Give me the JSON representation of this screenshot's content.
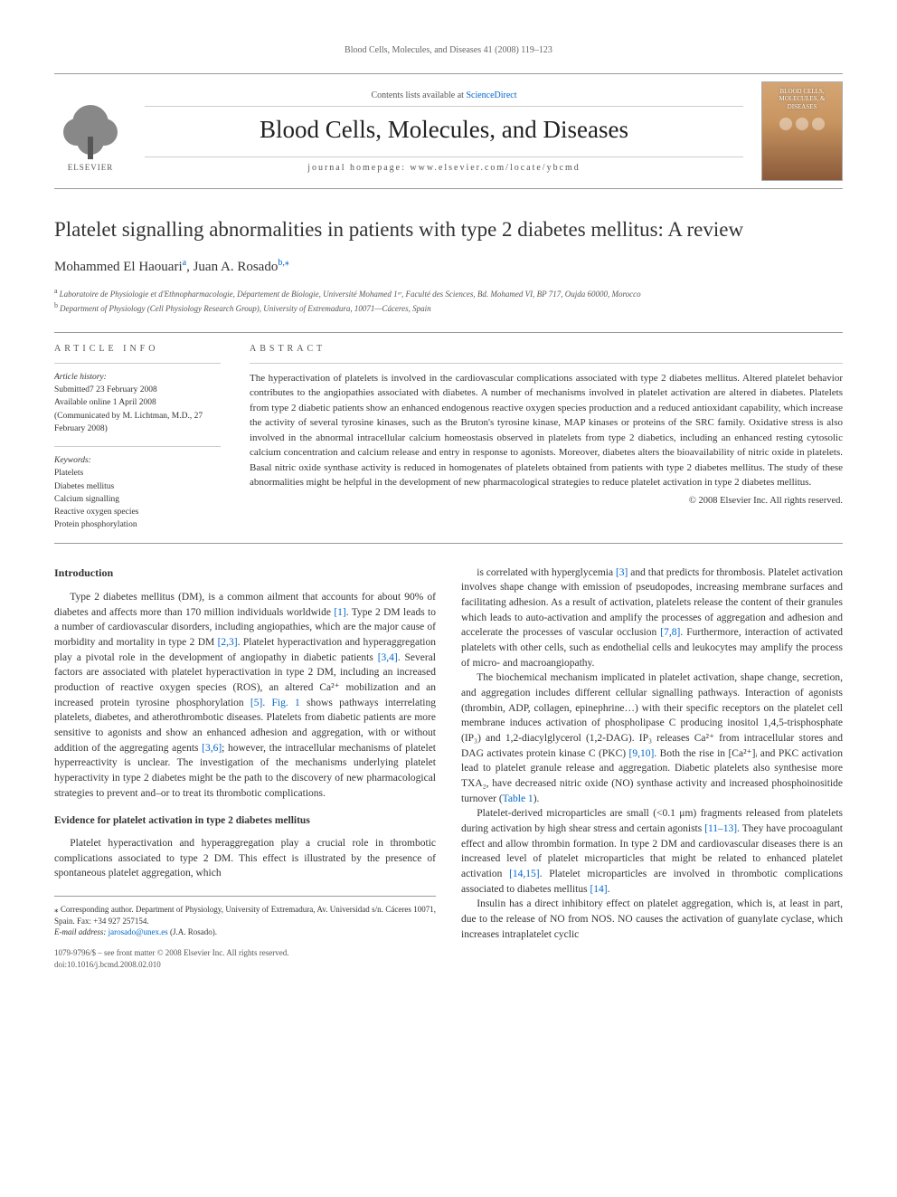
{
  "runningHeader": "Blood Cells, Molecules, and Diseases 41 (2008) 119–123",
  "masthead": {
    "publisher": "ELSEVIER",
    "contentsPrefix": "Contents lists available at ",
    "contentsLink": "ScienceDirect",
    "journalName": "Blood Cells, Molecules, and Diseases",
    "homepageLabel": "journal homepage: www.elsevier.com/locate/ybcmd",
    "coverTitle": "BLOOD CELLS, MOLECULES, & DISEASES"
  },
  "article": {
    "title": "Platelet signalling abnormalities in patients with type 2 diabetes mellitus: A review",
    "authors": [
      {
        "name": "Mohammed El Haouari",
        "affMark": "a"
      },
      {
        "name": "Juan A. Rosado",
        "affMark": "b,",
        "corresponding": "⁎"
      }
    ],
    "affiliations": [
      {
        "mark": "a",
        "text": "Laboratoire de Physiologie et d'Ethnopharmacologie, Département de Biologie, Université Mohamed 1ᵉʳ, Faculté des Sciences, Bd. Mohamed VI, BP 717, Oujda 60000, Morocco"
      },
      {
        "mark": "b",
        "text": "Department of Physiology (Cell Physiology Research Group), University of Extremadura, 10071—Cáceres, Spain"
      }
    ]
  },
  "articleInfo": {
    "heading": "ARTICLE INFO",
    "historyLabel": "Article history:",
    "history": [
      "Submitted7 23 February 2008",
      "Available online 1 April 2008",
      "(Communicated by M. Lichtman, M.D., 27 February 2008)"
    ],
    "keywordsLabel": "Keywords:",
    "keywords": [
      "Platelets",
      "Diabetes mellitus",
      "Calcium signalling",
      "Reactive oxygen species",
      "Protein phosphorylation"
    ]
  },
  "abstract": {
    "heading": "ABSTRACT",
    "text": "The hyperactivation of platelets is involved in the cardiovascular complications associated with type 2 diabetes mellitus. Altered platelet behavior contributes to the angiopathies associated with diabetes. A number of mechanisms involved in platelet activation are altered in diabetes. Platelets from type 2 diabetic patients show an enhanced endogenous reactive oxygen species production and a reduced antioxidant capability, which increase the activity of several tyrosine kinases, such as the Bruton's tyrosine kinase, MAP kinases or proteins of the SRC family. Oxidative stress is also involved in the abnormal intracellular calcium homeostasis observed in platelets from type 2 diabetics, including an enhanced resting cytosolic calcium concentration and calcium release and entry in response to agonists. Moreover, diabetes alters the bioavailability of nitric oxide in platelets. Basal nitric oxide synthase activity is reduced in homogenates of platelets obtained from patients with type 2 diabetes mellitus. The study of these abnormalities might be helpful in the development of new pharmacological strategies to reduce platelet activation in type 2 diabetes mellitus.",
    "copyright": "© 2008 Elsevier Inc. All rights reserved."
  },
  "body": {
    "introHeading": "Introduction",
    "evidenceHeading": "Evidence for platelet activation in type 2 diabetes mellitus",
    "p1a": "Type 2 diabetes mellitus (DM), is a common ailment that accounts for about 90% of diabetes and affects more than 170 million individuals worldwide ",
    "c1": "[1]",
    "p1b": ". Type 2 DM leads to a number of cardiovascular disorders, including angiopathies, which are the major cause of morbidity and mortality in type 2 DM ",
    "c2": "[2,3]",
    "p1c": ". Platelet hyperactivation and hyperaggregation play a pivotal role in the development of angiopathy in diabetic patients ",
    "c3": "[3,4]",
    "p1d": ". Several factors are associated with platelet hyperactivation in type 2 DM, including an increased production of reactive oxygen species (ROS), an altered Ca²⁺ mobilization and an increased protein tyrosine phosphorylation ",
    "c4": "[5]",
    "p1e": ". ",
    "fig1": "Fig. 1",
    "p1f": " shows pathways interrelating platelets, diabetes, and atherothrombotic diseases. Platelets from diabetic patients are more sensitive to agonists and show an enhanced adhesion and aggregation, with or without addition of the aggregating agents ",
    "c5": "[3,6]",
    "p1g": "; however, the intracellular mechanisms of platelet hyperreactivity is unclear. The investigation of the mechanisms underlying platelet hyperactivity in type 2 diabetes might be the path to the discovery of new pharmacological strategies to prevent and–or to treat its thrombotic complications.",
    "p2": "Platelet hyperactivation and hyperaggregation play a crucial role in thrombotic complications associated to type 2 DM. This effect is illustrated by the presence of spontaneous platelet aggregation, which",
    "p3a": "is correlated with hyperglycemia ",
    "c6": "[3]",
    "p3b": " and that predicts for thrombosis. Platelet activation involves shape change with emission of pseudopodes, increasing membrane surfaces and facilitating adhesion. As a result of activation, platelets release the content of their granules which leads to auto-activation and amplify the processes of aggregation and adhesion and accelerate the processes of vascular occlusion ",
    "c7": "[7,8]",
    "p3c": ". Furthermore, interaction of activated platelets with other cells, such as endothelial cells and leukocytes may amplify the process of micro- and macroangiopathy.",
    "p4a": "The biochemical mechanism implicated in platelet activation, shape change, secretion, and aggregation includes different cellular signalling pathways. Interaction of agonists (thrombin, ADP, collagen, epinephrine…) with their specific receptors on the platelet cell membrane induces activation of phospholipase C producing inositol 1,4,5-trisphosphate (IP₃) and 1,2-diacylglycerol (1,2-DAG). IP₃ releases Ca²⁺ from intracellular stores and DAG activates protein kinase C (PKC) ",
    "c8": "[9,10]",
    "p4b": ". Both the rise in [Ca²⁺]ᵢ and PKC activation lead to platelet granule release and aggregation. Diabetic platelets also synthesise more TXA₂, have decreased nitric oxide (NO) synthase activity and increased phosphoinositide turnover (",
    "tab1": "Table 1",
    "p4c": ").",
    "p5a": "Platelet-derived microparticles are small (<0.1 μm) fragments released from platelets during activation by high shear stress and certain agonists ",
    "c9": "[11–13]",
    "p5b": ". They have procoagulant effect and allow thrombin formation. In type 2 DM and cardiovascular diseases there is an increased level of platelet microparticles that might be related to enhanced platelet activation ",
    "c10": "[14,15]",
    "p5c": ". Platelet microparticles are involved in thrombotic complications associated to diabetes mellitus ",
    "c11": "[14]",
    "p5d": ".",
    "p6": "Insulin has a direct inhibitory effect on platelet aggregation, which is, at least in part, due to the release of NO from NOS. NO causes the activation of guanylate cyclase, which increases intraplatelet cyclic"
  },
  "footer": {
    "corrLabel": "⁎ Corresponding author. Department of Physiology, University of Extremadura, Av. Universidad s/n. Cáceres 10071, Spain. Fax: +34 927 257154.",
    "emailLabel": "E-mail address:",
    "email": "jarosado@unex.es",
    "emailOwner": "(J.A. Rosado).",
    "issn": "1079-9796/$ – see front matter © 2008 Elsevier Inc. All rights reserved.",
    "doi": "doi:10.1016/j.bcmd.2008.02.010"
  },
  "colors": {
    "link": "#0066cc",
    "text": "#333333",
    "rule": "#999999",
    "lightRule": "#cccccc"
  }
}
